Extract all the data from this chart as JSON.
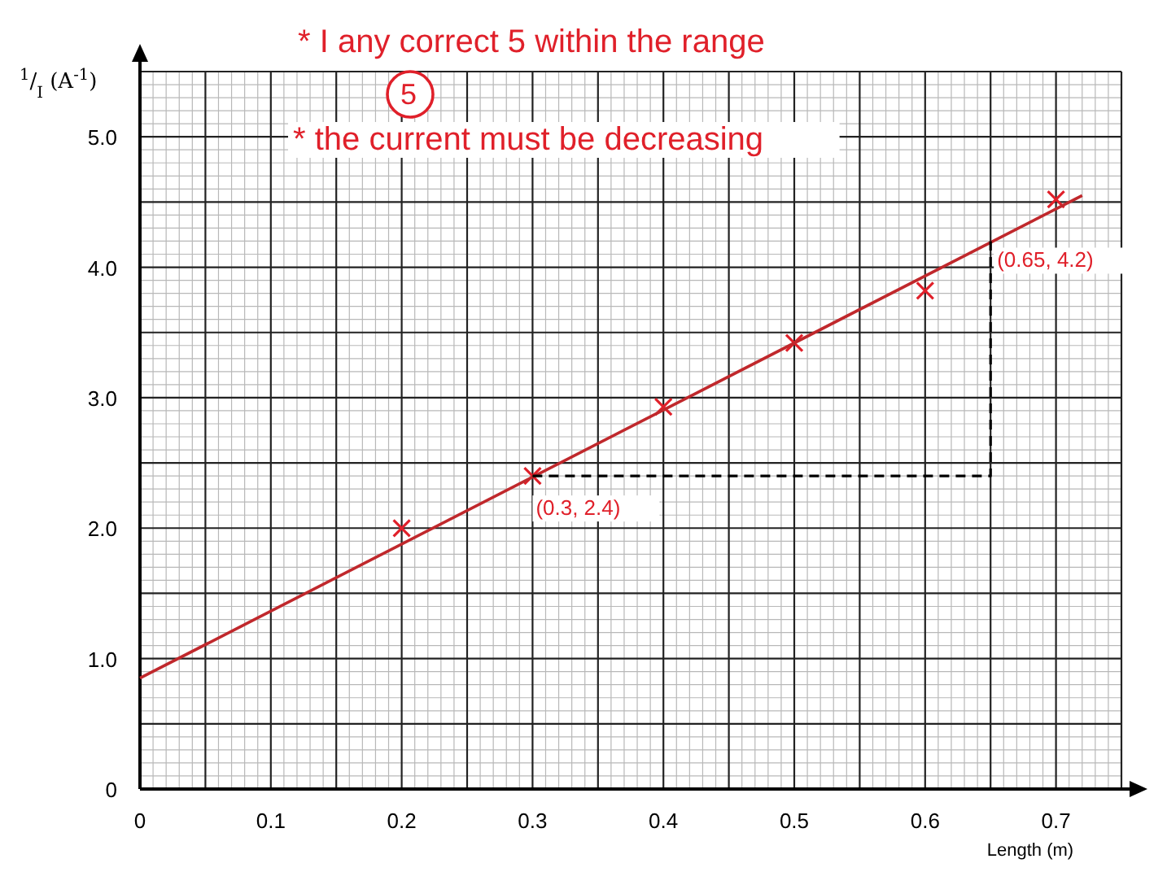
{
  "chart_data": {
    "type": "scatter",
    "xlabel": "Length (m)",
    "ylabel": "$^{1}$/$_{I}$ (A$^{-1}$)",
    "xlim": [
      0,
      0.75
    ],
    "ylim": [
      0,
      5.5
    ],
    "xticks": [
      0,
      {
        "value": 0.05,
        "label": null
      },
      0.1,
      {
        "value": 0.15,
        "label": null
      },
      0.2,
      {
        "value": 0.25,
        "label": null
      },
      0.3,
      {
        "value": 0.35,
        "label": null
      },
      0.4,
      {
        "value": 0.45,
        "label": null
      },
      0.5,
      {
        "value": 0.55,
        "label": null
      },
      0.6,
      {
        "value": 0.65,
        "label": null
      },
      0.7,
      {
        "value": 0.75,
        "label": null
      }
    ],
    "yticks": [
      0,
      {
        "value": 0.5,
        "label": null
      },
      {
        "value": 1,
        "label": "1.0"
      },
      {
        "value": 1.5,
        "label": null
      },
      {
        "value": 2,
        "label": "2.0"
      },
      {
        "value": 2.5,
        "label": null
      },
      {
        "value": 3,
        "label": "3.0"
      },
      {
        "value": 3.5,
        "label": null
      },
      {
        "value": 4,
        "label": "4.0"
      },
      {
        "value": 4.5,
        "label": null
      },
      {
        "value": 5,
        "label": "5.0"
      },
      {
        "value": 5.5,
        "label": null
      }
    ],
    "grid": true,
    "marker": "cross",
    "series": [
      {
        "type": "scatter",
        "color": "#e0202a",
        "x": [
          0.2,
          0.3,
          0.4,
          0.5,
          0.6,
          0.7
        ],
        "values": [
          2.0,
          2.4,
          2.93,
          3.42,
          3.82,
          4.52
        ]
      },
      {
        "type": "line",
        "color": "#c0282c",
        "x": [
          0,
          0.72
        ],
        "values": [
          0.85,
          4.55
        ],
        "marker": "none"
      },
      {
        "type": "line",
        "color": "#000000",
        "x": [
          0.3,
          0.65,
          0.65
        ],
        "values": [
          2.4,
          2.4,
          4.2
        ],
        "marker": "none",
        "line_style": "dashed"
      }
    ],
    "annotations": [
      "* I any correct 5 within the range",
      "5",
      "* the current must be decreasing",
      {
        "text": "(0.3, 2.4)",
        "x": 0.3,
        "y": 2.4
      },
      {
        "text": "(0.65, 4.2)",
        "x": 0.65,
        "y": 4.2
      }
    ]
  }
}
